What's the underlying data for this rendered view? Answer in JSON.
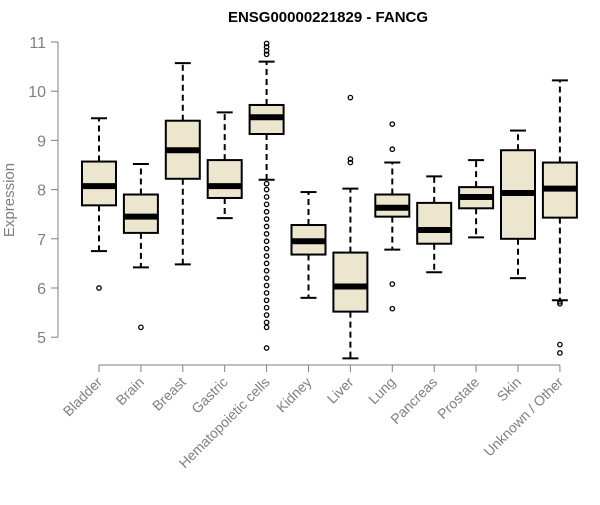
{
  "chart_data": {
    "type": "boxplot",
    "title": "ENSG00000221829 - FANCG",
    "ylabel": "Expression",
    "xlabel": "",
    "ylim": [
      4.5,
      11.0
    ],
    "yticks": [
      5,
      6,
      7,
      8,
      9,
      10,
      11
    ],
    "grid": false,
    "legend": "none",
    "box_fill": "#ede6cf",
    "box_stroke": "#000000",
    "axis_color": "#7f7f7f",
    "categories": [
      "Bladder",
      "Brain",
      "Breast",
      "Gastric",
      "Hematopoietic cells",
      "Kidney",
      "Liver",
      "Lung",
      "Pancreas",
      "Prostate",
      "Skin",
      "Unknown / Other"
    ],
    "boxes": [
      {
        "category": "Bladder",
        "whisker_low": 6.75,
        "q1": 7.68,
        "median": 8.07,
        "q3": 8.57,
        "whisker_high": 9.45,
        "outliers": [
          6.0
        ]
      },
      {
        "category": "Brain",
        "whisker_low": 6.42,
        "q1": 7.12,
        "median": 7.45,
        "q3": 7.9,
        "whisker_high": 8.52,
        "outliers": [
          5.2
        ]
      },
      {
        "category": "Breast",
        "whisker_low": 6.48,
        "q1": 8.22,
        "median": 8.8,
        "q3": 9.4,
        "whisker_high": 10.57,
        "outliers": []
      },
      {
        "category": "Gastric",
        "whisker_low": 7.42,
        "q1": 7.83,
        "median": 8.07,
        "q3": 8.6,
        "whisker_high": 9.57,
        "outliers": []
      },
      {
        "category": "Hematopoietic cells",
        "whisker_low": 8.2,
        "q1": 9.13,
        "median": 9.47,
        "q3": 9.72,
        "whisker_high": 10.6,
        "outliers": [
          10.75,
          10.82,
          10.9,
          10.97,
          8.12,
          8.0,
          7.85,
          7.7,
          7.55,
          7.4,
          7.25,
          7.1,
          6.95,
          6.8,
          6.65,
          6.5,
          6.35,
          6.2,
          6.05,
          5.9,
          5.75,
          5.6,
          5.45,
          5.3,
          5.2,
          4.78
        ]
      },
      {
        "category": "Kidney",
        "whisker_low": 5.8,
        "q1": 6.68,
        "median": 6.95,
        "q3": 7.28,
        "whisker_high": 7.95,
        "outliers": []
      },
      {
        "category": "Liver",
        "whisker_low": 4.57,
        "q1": 5.52,
        "median": 6.03,
        "q3": 6.72,
        "whisker_high": 8.02,
        "outliers": [
          8.55,
          8.62,
          9.87
        ]
      },
      {
        "category": "Lung",
        "whisker_low": 6.78,
        "q1": 7.45,
        "median": 7.63,
        "q3": 7.9,
        "whisker_high": 8.55,
        "outliers": [
          8.82,
          9.33,
          6.08,
          5.58
        ]
      },
      {
        "category": "Pancreas",
        "whisker_low": 6.32,
        "q1": 6.9,
        "median": 7.18,
        "q3": 7.73,
        "whisker_high": 8.27,
        "outliers": []
      },
      {
        "category": "Prostate",
        "whisker_low": 7.03,
        "q1": 7.62,
        "median": 7.85,
        "q3": 8.05,
        "whisker_high": 8.6,
        "outliers": []
      },
      {
        "category": "Skin",
        "whisker_low": 6.2,
        "q1": 7.0,
        "median": 7.93,
        "q3": 8.8,
        "whisker_high": 9.2,
        "outliers": []
      },
      {
        "category": "Unknown / Other",
        "whisker_low": 5.75,
        "q1": 7.43,
        "median": 8.02,
        "q3": 8.55,
        "whisker_high": 10.22,
        "outliers": [
          5.72,
          5.68,
          4.85,
          4.68
        ]
      }
    ]
  }
}
